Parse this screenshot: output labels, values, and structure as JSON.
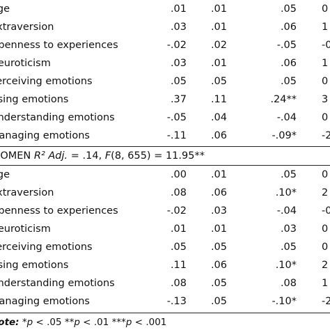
{
  "table": {
    "group1_rows": [
      {
        "label": "Age",
        "b": ".01",
        "se": ".01",
        "beta": ".05",
        "t": "0"
      },
      {
        "label": "Extraversion",
        "b": ".03",
        "se": ".01",
        "beta": ".06",
        "t": "1"
      },
      {
        "label": "Openness to experiences",
        "b": "-.02",
        "se": ".02",
        "beta": "-.05",
        "t": "-0"
      },
      {
        "label": "Neuroticism",
        "b": ".03",
        "se": ".01",
        "beta": ".06",
        "t": "1"
      },
      {
        "label": "Perceiving emotions",
        "b": ".05",
        "se": ".05",
        "beta": ".05",
        "t": "0"
      },
      {
        "label": "Using emotions",
        "b": ".37",
        "se": ".11",
        "beta": ".24**",
        "t": "3"
      },
      {
        "label": "Understanding emotions",
        "b": "-.05",
        "se": ".04",
        "beta": "-.04",
        "t": "0"
      },
      {
        "label": "Managing emotions",
        "b": "-.11",
        "se": ".06",
        "beta": "-.09*",
        "t": "-2"
      }
    ],
    "group2_header": {
      "prefix": "WOMEN ",
      "stat": "R² Adj.",
      "mid": " = .14, ",
      "f": "F",
      "rest": "(8, 655) = 11.95**"
    },
    "group2_rows": [
      {
        "label": "Age",
        "b": ".00",
        "se": ".01",
        "beta": ".05",
        "t": "0"
      },
      {
        "label": "Extraversion",
        "b": ".08",
        "se": ".06",
        "beta": ".10*",
        "t": "2"
      },
      {
        "label": "Openness to experiences",
        "b": "-.02",
        "se": ".03",
        "beta": "-.04",
        "t": "-0"
      },
      {
        "label": "Neuroticism",
        "b": ".01",
        "se": ".01",
        "beta": ".03",
        "t": "0"
      },
      {
        "label": "Perceiving emotions",
        "b": ".05",
        "se": ".05",
        "beta": ".05",
        "t": "0"
      },
      {
        "label": "Using emotions",
        "b": ".11",
        "se": ".06",
        "beta": ".10*",
        "t": "2"
      },
      {
        "label": "Understanding emotions",
        "b": ".08",
        "se": ".05",
        "beta": ".08",
        "t": "1"
      },
      {
        "label": "Managing emotions",
        "b": "-.13",
        "se": ".05",
        "beta": "-.10*",
        "t": "-2"
      }
    ],
    "note": {
      "label": "Note:",
      "p1": " *",
      "p2": " < .05 **",
      "p3": " < .01 ***",
      "p4": " < .001",
      "p_symbol": "p"
    }
  }
}
